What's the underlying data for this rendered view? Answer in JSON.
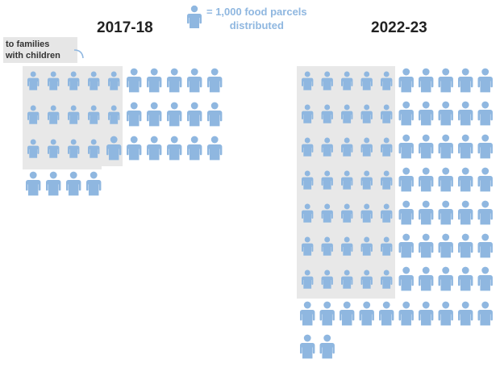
{
  "legend": {
    "text_line1": "= 1,000 food parcels",
    "text_line2": "distributed",
    "icon": "person-icon",
    "color": "#8fb7e0"
  },
  "annotation": {
    "label_line1": "to families",
    "label_line2": "with children"
  },
  "colors": {
    "icon": "#8fb7e0",
    "shading": "#e8e8e8",
    "title": "#222222"
  },
  "chart_data": [
    {
      "type": "pictogram",
      "title": "2017-18",
      "unit": "1,000 food parcels per icon",
      "series": [
        {
          "name": "to families with children",
          "count": 14
        },
        {
          "name": "",
          "count": 20
        }
      ],
      "total": 34
    },
    {
      "type": "pictogram",
      "title": "2022-23",
      "unit": "1,000 food parcels per icon",
      "series": [
        {
          "name": "to families with children",
          "count": 35
        },
        {
          "name": "",
          "count": 47
        }
      ],
      "total": 82
    }
  ]
}
